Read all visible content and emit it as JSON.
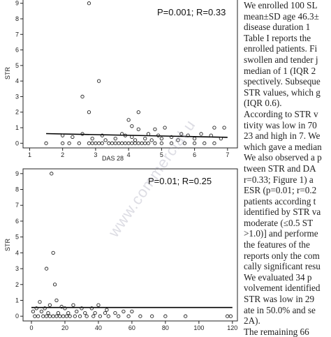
{
  "chart_data": [
    {
      "type": "scatter",
      "title": "",
      "annotation": "P=0.001; R=0.33",
      "xlabel": "DAS 28",
      "ylabel": "STR",
      "xlim": [
        0.8,
        7.3
      ],
      "ylim": [
        -0.3,
        9.3
      ],
      "xticks": [
        1,
        2,
        3,
        4,
        5,
        6,
        7
      ],
      "yticks": [
        0,
        1,
        2,
        3,
        4,
        5,
        6,
        7,
        8,
        9
      ],
      "grid": false,
      "points": [
        [
          2.8,
          9.0
        ],
        [
          3.1,
          4.0
        ],
        [
          2.6,
          3.0
        ],
        [
          2.8,
          2.0
        ],
        [
          4.3,
          2.0
        ],
        [
          4.0,
          1.5
        ],
        [
          4.1,
          1.1
        ],
        [
          5.1,
          1.0
        ],
        [
          6.6,
          1.0
        ],
        [
          6.9,
          1.0
        ],
        [
          4.3,
          0.9
        ],
        [
          4.8,
          0.9
        ],
        [
          2.6,
          0.6
        ],
        [
          3.8,
          0.6
        ],
        [
          4.6,
          0.6
        ],
        [
          5.6,
          0.6
        ],
        [
          6.2,
          0.6
        ],
        [
          2.0,
          0.5
        ],
        [
          3.2,
          0.5
        ],
        [
          3.9,
          0.5
        ],
        [
          4.9,
          0.5
        ],
        [
          5.8,
          0.5
        ],
        [
          6.5,
          0.5
        ],
        [
          2.3,
          0.4
        ],
        [
          4.1,
          0.4
        ],
        [
          5.3,
          0.4
        ],
        [
          2.9,
          0.3
        ],
        [
          3.6,
          0.3
        ],
        [
          4.5,
          0.3
        ],
        [
          5.0,
          0.3
        ],
        [
          6.0,
          0.3
        ],
        [
          6.8,
          0.3
        ],
        [
          3.3,
          0.2
        ],
        [
          4.2,
          0.2
        ],
        [
          4.7,
          0.2
        ],
        [
          5.5,
          0.2
        ],
        [
          1.5,
          0.0
        ],
        [
          2.0,
          0.0
        ],
        [
          2.2,
          0.0
        ],
        [
          2.5,
          0.0
        ],
        [
          2.8,
          0.0
        ],
        [
          2.9,
          0.0
        ],
        [
          3.0,
          0.0
        ],
        [
          3.1,
          0.0
        ],
        [
          3.2,
          0.0
        ],
        [
          3.4,
          0.0
        ],
        [
          3.5,
          0.0
        ],
        [
          3.6,
          0.0
        ],
        [
          3.7,
          0.0
        ],
        [
          3.8,
          0.0
        ],
        [
          3.9,
          0.0
        ],
        [
          4.0,
          0.0
        ],
        [
          4.1,
          0.0
        ],
        [
          4.2,
          0.0
        ],
        [
          4.3,
          0.0
        ],
        [
          4.4,
          0.0
        ],
        [
          4.5,
          0.0
        ],
        [
          4.6,
          0.0
        ],
        [
          4.8,
          0.0
        ],
        [
          5.0,
          0.0
        ],
        [
          5.3,
          0.0
        ],
        [
          5.7,
          0.0
        ],
        [
          6.0,
          0.0
        ],
        [
          6.3,
          0.0
        ],
        [
          6.6,
          0.0
        ]
      ],
      "regression": {
        "x": [
          1.5,
          7.0
        ],
        "y": [
          0.62,
          0.38
        ]
      }
    },
    {
      "type": "scatter",
      "title": "",
      "annotation": "P=0.01; R=0.25",
      "xlabel": "",
      "ylabel": "STR",
      "xlim": [
        -5,
        123
      ],
      "ylim": [
        -0.3,
        9.3
      ],
      "xticks": [
        0,
        20,
        40,
        60,
        80,
        100,
        120
      ],
      "yticks": [
        0,
        1,
        2,
        3,
        4,
        5,
        6,
        7,
        8,
        9
      ],
      "grid": false,
      "points": [
        [
          12,
          9.0
        ],
        [
          13,
          4.0
        ],
        [
          9,
          3.0
        ],
        [
          14,
          2.0
        ],
        [
          15,
          1.0
        ],
        [
          5,
          0.9
        ],
        [
          11,
          0.7
        ],
        [
          25,
          0.7
        ],
        [
          18,
          0.6
        ],
        [
          40,
          0.7
        ],
        [
          3,
          0.5
        ],
        [
          8,
          0.5
        ],
        [
          20,
          0.5
        ],
        [
          30,
          0.5
        ],
        [
          36,
          0.5
        ],
        [
          45,
          0.4
        ],
        [
          55,
          0.3
        ],
        [
          60,
          0.3
        ],
        [
          1,
          0.3
        ],
        [
          6,
          0.3
        ],
        [
          10,
          0.2
        ],
        [
          16,
          0.2
        ],
        [
          22,
          0.2
        ],
        [
          27,
          0.3
        ],
        [
          32,
          0.2
        ],
        [
          38,
          0.2
        ],
        [
          44,
          0.2
        ],
        [
          50,
          0.2
        ],
        [
          2,
          0.0
        ],
        [
          4,
          0.0
        ],
        [
          7,
          0.0
        ],
        [
          9,
          0.0
        ],
        [
          11,
          0.0
        ],
        [
          13,
          0.0
        ],
        [
          15,
          0.0
        ],
        [
          17,
          0.0
        ],
        [
          19,
          0.0
        ],
        [
          21,
          0.0
        ],
        [
          23,
          0.0
        ],
        [
          26,
          0.0
        ],
        [
          29,
          0.0
        ],
        [
          33,
          0.0
        ],
        [
          37,
          0.0
        ],
        [
          41,
          0.0
        ],
        [
          46,
          0.0
        ],
        [
          52,
          0.0
        ],
        [
          58,
          0.0
        ],
        [
          65,
          0.0
        ],
        [
          72,
          0.0
        ],
        [
          80,
          0.0
        ],
        [
          92,
          0.0
        ],
        [
          117,
          0.0
        ],
        [
          119,
          0.0
        ]
      ],
      "regression": {
        "x": [
          0,
          120
        ],
        "y": [
          0.55,
          0.55
        ]
      }
    }
  ],
  "text_column": {
    "lines": [
      "We enrolled 100 SL",
      "mean±SD age 46.3±",
      "disease duration 1",
      "Table I reports the",
      "enrolled patients. Fi",
      "swollen and tender j",
      "median of 1 (IQR 2",
      "spectively. Subseque",
      "STR values, which g",
      "(IQR 0.6).",
      "According to STR v",
      "tivity was low in 70",
      "23 and high in 7. We",
      "which gave a median",
      "We also observed a p",
      "tween STR and DA",
      "r=0.33; Figure 1) a",
      "ESR (p=0.01; r=0.2",
      "patients according t",
      "identified by STR va",
      "moderate (≤0.5 ST",
      ">1.0)] and performe",
      "the features of the",
      "reports only the com",
      "cally significant resu",
      "We evaluated 34 p",
      "volvement identified",
      "STR was low in 29",
      "ate in 50.0% and se",
      "2A).",
      "The remaining 66"
    ]
  },
  "watermark": "www.commercial.u"
}
